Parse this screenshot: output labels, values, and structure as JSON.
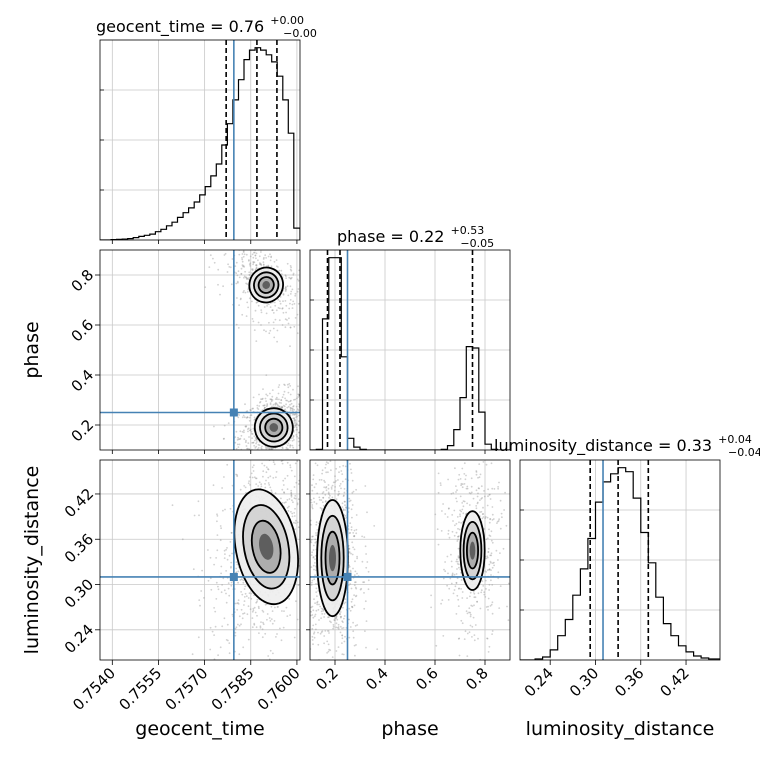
{
  "chart_data": {
    "type": "corner",
    "parameters": [
      {
        "key": "geocent_time",
        "label": "geocent_time",
        "range": [
          0.7536,
          0.7601
        ],
        "truth": 0.75795,
        "ticks": [
          0.754,
          0.7555,
          0.757,
          0.7585,
          0.76
        ],
        "tick_labels": [
          "0.7540",
          "0.7555",
          "0.7570",
          "0.7585",
          "0.7600"
        ],
        "title": {
          "base": "geocent_time = 0.76",
          "upper": "+0.00",
          "lower": "−0.00"
        },
        "quantiles": [
          0.7577,
          0.7587,
          0.75935
        ],
        "histogram": {
          "bins": [
            0.7536,
            0.75378,
            0.75396,
            0.75414,
            0.75432,
            0.7545,
            0.75468,
            0.75486,
            0.75504,
            0.75522,
            0.7554,
            0.75558,
            0.75576,
            0.75594,
            0.75612,
            0.7563,
            0.75648,
            0.75666,
            0.75684,
            0.75702,
            0.7572,
            0.75738,
            0.75756,
            0.75774,
            0.75792,
            0.7581,
            0.75828,
            0.75846,
            0.75864,
            0.75882,
            0.759,
            0.75918,
            0.75936,
            0.75954,
            0.75972,
            0.7599,
            0.7601
          ],
          "counts": [
            0,
            0,
            0.3,
            0.5,
            0.8,
            1.2,
            2,
            3,
            4,
            5,
            7,
            9,
            12,
            15,
            19,
            23,
            27,
            32,
            38,
            45,
            54,
            64,
            80,
            98,
            118,
            135,
            152,
            160,
            162,
            160,
            156,
            150,
            138,
            118,
            90,
            10
          ]
        }
      },
      {
        "key": "phase",
        "label": "phase",
        "range": [
          0.1,
          0.9
        ],
        "truth": 0.25,
        "ticks": [
          0.2,
          0.4,
          0.6,
          0.8
        ],
        "tick_labels": [
          "0.2",
          "0.4",
          "0.6",
          "0.8"
        ],
        "title": {
          "base": "phase = 0.22",
          "upper": "+0.53",
          "lower": "−0.05"
        },
        "quantiles": [
          0.17,
          0.22,
          0.75
        ],
        "histogram": {
          "bins": [
            0.1,
            0.125,
            0.15,
            0.175,
            0.2,
            0.225,
            0.25,
            0.275,
            0.3,
            0.325,
            0.35,
            0.375,
            0.4,
            0.425,
            0.45,
            0.475,
            0.5,
            0.525,
            0.55,
            0.575,
            0.6,
            0.625,
            0.65,
            0.675,
            0.7,
            0.725,
            0.75,
            0.775,
            0.8,
            0.825,
            0.85,
            0.875,
            0.9
          ],
          "counts": [
            0,
            0.5,
            90,
            132,
            132,
            64,
            8,
            2,
            0.5,
            0,
            0,
            0,
            0,
            0,
            0,
            0,
            0,
            0,
            0,
            0,
            0,
            0.5,
            3,
            14,
            36,
            71,
            70,
            26,
            4,
            0.5,
            0,
            0
          ]
        }
      },
      {
        "key": "luminosity_distance",
        "label": "luminosity_distance",
        "range": [
          0.2,
          0.465
        ],
        "truth": 0.31,
        "ticks": [
          0.24,
          0.3,
          0.36,
          0.42
        ],
        "tick_labels": [
          "0.24",
          "0.30",
          "0.36",
          "0.42"
        ],
        "title": {
          "base": "luminosity_distance = 0.33",
          "upper": "+0.04",
          "lower": "−0.04"
        },
        "quantiles": [
          0.293,
          0.33,
          0.37
        ],
        "histogram": {
          "bins": [
            0.2,
            0.21,
            0.22,
            0.23,
            0.24,
            0.25,
            0.26,
            0.27,
            0.28,
            0.29,
            0.3,
            0.31,
            0.32,
            0.33,
            0.34,
            0.35,
            0.36,
            0.37,
            0.38,
            0.39,
            0.4,
            0.41,
            0.42,
            0.43,
            0.44,
            0.45,
            0.465
          ],
          "counts": [
            0,
            0,
            0.5,
            1.5,
            5,
            12,
            20,
            32,
            45,
            60,
            78,
            88,
            92,
            95,
            93,
            80,
            63,
            48,
            31,
            18,
            12,
            7,
            4,
            2,
            1,
            0.5
          ]
        }
      }
    ],
    "contours_2d": [
      {
        "x": "geocent_time",
        "y": "phase",
        "modes": [
          {
            "cx": 0.75925,
            "cy": 0.19,
            "sx": 0.00028,
            "sy": 0.035,
            "rho": 0.3,
            "weight": 1.0
          },
          {
            "cx": 0.759,
            "cy": 0.76,
            "sx": 0.00035,
            "sy": 0.045,
            "rho": -0.5,
            "weight": 0.5
          }
        ]
      },
      {
        "x": "geocent_time",
        "y": "luminosity_distance",
        "modes": [
          {
            "cx": 0.759,
            "cy": 0.35,
            "sx": 0.00045,
            "sy": 0.035,
            "rho": 0.35,
            "weight": 1.0
          }
        ]
      },
      {
        "x": "phase",
        "y": "luminosity_distance",
        "modes": [
          {
            "cx": 0.19,
            "cy": 0.335,
            "sx": 0.028,
            "sy": 0.035,
            "rho": 0.0,
            "weight": 1.0
          },
          {
            "cx": 0.75,
            "cy": 0.345,
            "sx": 0.03,
            "sy": 0.032,
            "rho": 0.0,
            "weight": 0.55
          }
        ]
      }
    ],
    "truth_color": "#4682b4",
    "grid": true,
    "line_style": {
      "quantiles": "dashed black",
      "contours": "solid black"
    }
  }
}
